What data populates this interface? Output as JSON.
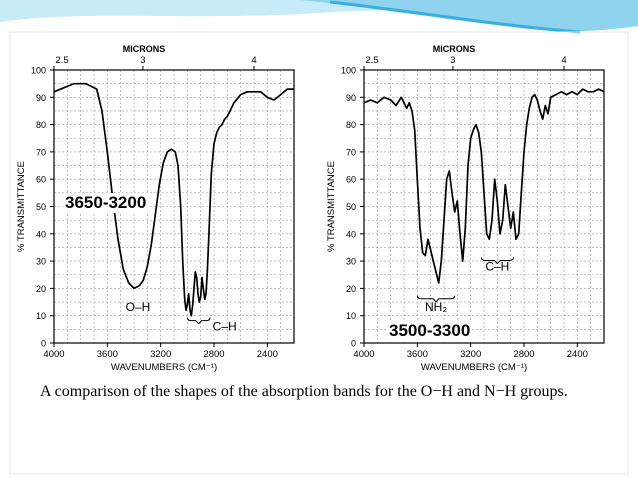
{
  "slide": {
    "background": "#ffffff",
    "accent_colors": [
      "#8fd3ee",
      "#3aaee0",
      "#c7ebf8"
    ],
    "caption": "A comparison of the shapes of the absorption bands for the O−H and N−H groups."
  },
  "chart_data": [
    {
      "type": "line",
      "top_axis_label": "MICRONS",
      "top_ticks": [
        "2.5",
        "3",
        "4"
      ],
      "top_tick_wavenumbers": [
        4000,
        3333,
        2500
      ],
      "xlabel": "WAVENUMBERS (CM⁻¹)",
      "ylabel": "% TRANSMITTANCE",
      "xlim": [
        4000,
        2200
      ],
      "ylim": [
        0,
        100
      ],
      "xticks": [
        4000,
        3600,
        3200,
        2800,
        2400
      ],
      "yticks": [
        0,
        10,
        20,
        30,
        40,
        50,
        60,
        70,
        80,
        90,
        100
      ],
      "grid": true,
      "range_label": "3650-3200",
      "annotations": [
        "O–H",
        "C–H"
      ],
      "series": [
        {
          "x": [
            4000,
            3950,
            3900,
            3850,
            3800,
            3760,
            3720,
            3680,
            3640,
            3600,
            3560,
            3520,
            3480,
            3440,
            3400,
            3360,
            3330,
            3300,
            3270,
            3240,
            3210,
            3180,
            3150,
            3120,
            3090,
            3070,
            3050,
            3035,
            3020,
            3010,
            3000,
            2990,
            2980,
            2970,
            2960,
            2950,
            2940,
            2930,
            2920,
            2910,
            2900,
            2890,
            2880,
            2870,
            2860,
            2850,
            2840,
            2820,
            2800,
            2780,
            2760,
            2740,
            2720,
            2700,
            2680,
            2650,
            2600,
            2550,
            2500,
            2450,
            2400,
            2350,
            2300,
            2250,
            2200
          ],
          "y": [
            92,
            93,
            94,
            95,
            95,
            95,
            94,
            93,
            85,
            70,
            53,
            38,
            27,
            22,
            20,
            21,
            23,
            28,
            36,
            47,
            58,
            66,
            70,
            71,
            70,
            65,
            50,
            30,
            16,
            12,
            14,
            18,
            12,
            10,
            14,
            20,
            26,
            24,
            18,
            15,
            17,
            24,
            20,
            16,
            18,
            26,
            38,
            62,
            73,
            77,
            79,
            80,
            82,
            83,
            85,
            88,
            91,
            92,
            92,
            92,
            90,
            89,
            91,
            93,
            93
          ]
        }
      ]
    },
    {
      "type": "line",
      "top_axis_label": "MICRONS",
      "top_ticks": [
        "2.5",
        "3",
        "4"
      ],
      "top_tick_wavenumbers": [
        4000,
        3333,
        2500
      ],
      "xlabel": "WAVENUMBERS (CM⁻¹)",
      "ylabel": "% TRANSMITTANCE",
      "xlim": [
        4000,
        2200
      ],
      "ylim": [
        0,
        100
      ],
      "xticks": [
        4000,
        3600,
        3200,
        2800,
        2400
      ],
      "yticks": [
        0,
        10,
        20,
        30,
        40,
        50,
        60,
        70,
        80,
        90,
        100
      ],
      "grid": true,
      "range_label": "3500-3300",
      "annotations": [
        "C–H",
        "NH₂"
      ],
      "series": [
        {
          "x": [
            4000,
            3950,
            3900,
            3850,
            3800,
            3760,
            3720,
            3680,
            3660,
            3640,
            3620,
            3600,
            3580,
            3560,
            3540,
            3520,
            3500,
            3480,
            3460,
            3440,
            3420,
            3400,
            3380,
            3360,
            3340,
            3320,
            3300,
            3280,
            3260,
            3240,
            3220,
            3200,
            3180,
            3160,
            3140,
            3120,
            3100,
            3080,
            3060,
            3040,
            3020,
            3000,
            2980,
            2960,
            2940,
            2920,
            2900,
            2880,
            2860,
            2840,
            2820,
            2800,
            2780,
            2760,
            2740,
            2720,
            2700,
            2680,
            2660,
            2640,
            2620,
            2600,
            2560,
            2520,
            2480,
            2440,
            2400,
            2360,
            2320,
            2280,
            2240,
            2200
          ],
          "y": [
            88,
            89,
            88,
            90,
            89,
            87,
            90,
            86,
            88,
            85,
            78,
            60,
            42,
            33,
            32,
            38,
            34,
            30,
            26,
            22,
            30,
            45,
            60,
            63,
            55,
            48,
            52,
            40,
            30,
            42,
            65,
            75,
            78,
            80,
            77,
            70,
            55,
            40,
            38,
            45,
            60,
            52,
            40,
            45,
            58,
            50,
            42,
            48,
            38,
            40,
            55,
            70,
            80,
            86,
            90,
            91,
            89,
            85,
            82,
            87,
            84,
            90,
            91,
            92,
            91,
            92,
            91,
            93,
            92,
            92,
            93,
            92
          ]
        }
      ]
    }
  ]
}
